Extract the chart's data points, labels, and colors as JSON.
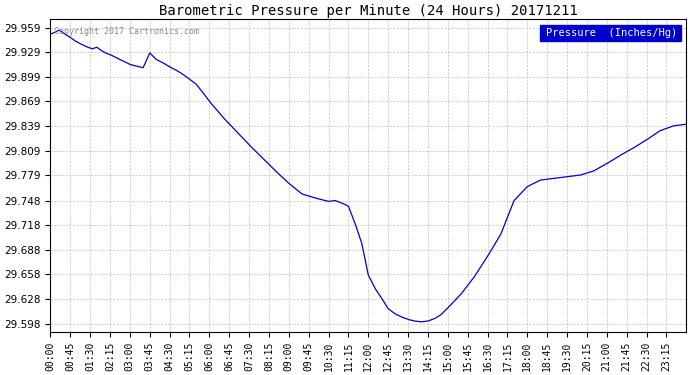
{
  "title": "Barometric Pressure per Minute (24 Hours) 20171211",
  "copyright": "Copyright 2017 Cartronics.com",
  "legend_label": "Pressure  (Inches/Hg)",
  "line_color": "#0000cc",
  "legend_bg": "#0000cc",
  "legend_text_color": "#ffffff",
  "background_color": "#ffffff",
  "grid_color": "#aaaaaa",
  "title_color": "#000000",
  "ylim": [
    29.588,
    29.969
  ],
  "yticks": [
    29.598,
    29.628,
    29.658,
    29.688,
    29.718,
    29.748,
    29.779,
    29.809,
    29.839,
    29.869,
    29.899,
    29.929,
    29.959
  ],
  "xtick_labels": [
    "00:00",
    "00:45",
    "01:30",
    "02:15",
    "03:00",
    "03:45",
    "04:30",
    "05:15",
    "06:00",
    "06:45",
    "07:30",
    "08:15",
    "09:00",
    "09:45",
    "10:30",
    "11:15",
    "12:00",
    "12:45",
    "13:30",
    "14:15",
    "15:00",
    "15:45",
    "16:30",
    "17:15",
    "18:00",
    "18:45",
    "19:30",
    "20:15",
    "21:00",
    "21:45",
    "22:30",
    "23:15"
  ],
  "keypoints_x": [
    0,
    10,
    20,
    30,
    45,
    55,
    65,
    80,
    95,
    105,
    115,
    125,
    135,
    150,
    165,
    180,
    195,
    210,
    225,
    240,
    255,
    270,
    285,
    300,
    315,
    330,
    345,
    360,
    390,
    420,
    450,
    480,
    510,
    540,
    570,
    600,
    630,
    645,
    660,
    675,
    690,
    705,
    720,
    735,
    750,
    765,
    780,
    795,
    810,
    825,
    840,
    855,
    870,
    885,
    900,
    930,
    960,
    990,
    1020,
    1050,
    1080,
    1110,
    1140,
    1170,
    1200,
    1230,
    1260,
    1290,
    1320,
    1350,
    1380,
    1410,
    1439
  ],
  "keypoints_y": [
    29.951,
    29.953,
    29.956,
    29.952,
    29.947,
    29.943,
    29.94,
    29.936,
    29.933,
    29.935,
    29.931,
    29.928,
    29.926,
    29.922,
    29.918,
    29.914,
    29.912,
    29.91,
    29.928,
    29.92,
    29.916,
    29.911,
    29.907,
    29.902,
    29.896,
    29.89,
    29.88,
    29.869,
    29.85,
    29.833,
    29.816,
    29.8,
    29.784,
    29.769,
    29.756,
    29.751,
    29.747,
    29.748,
    29.745,
    29.741,
    29.72,
    29.696,
    29.657,
    29.641,
    29.629,
    29.616,
    29.61,
    29.606,
    29.603,
    29.601,
    29.6,
    29.601,
    29.604,
    29.609,
    29.617,
    29.634,
    29.655,
    29.68,
    29.707,
    29.748,
    29.765,
    29.773,
    29.775,
    29.777,
    29.779,
    29.784,
    29.793,
    29.803,
    29.812,
    29.822,
    29.833,
    29.839,
    29.841
  ]
}
